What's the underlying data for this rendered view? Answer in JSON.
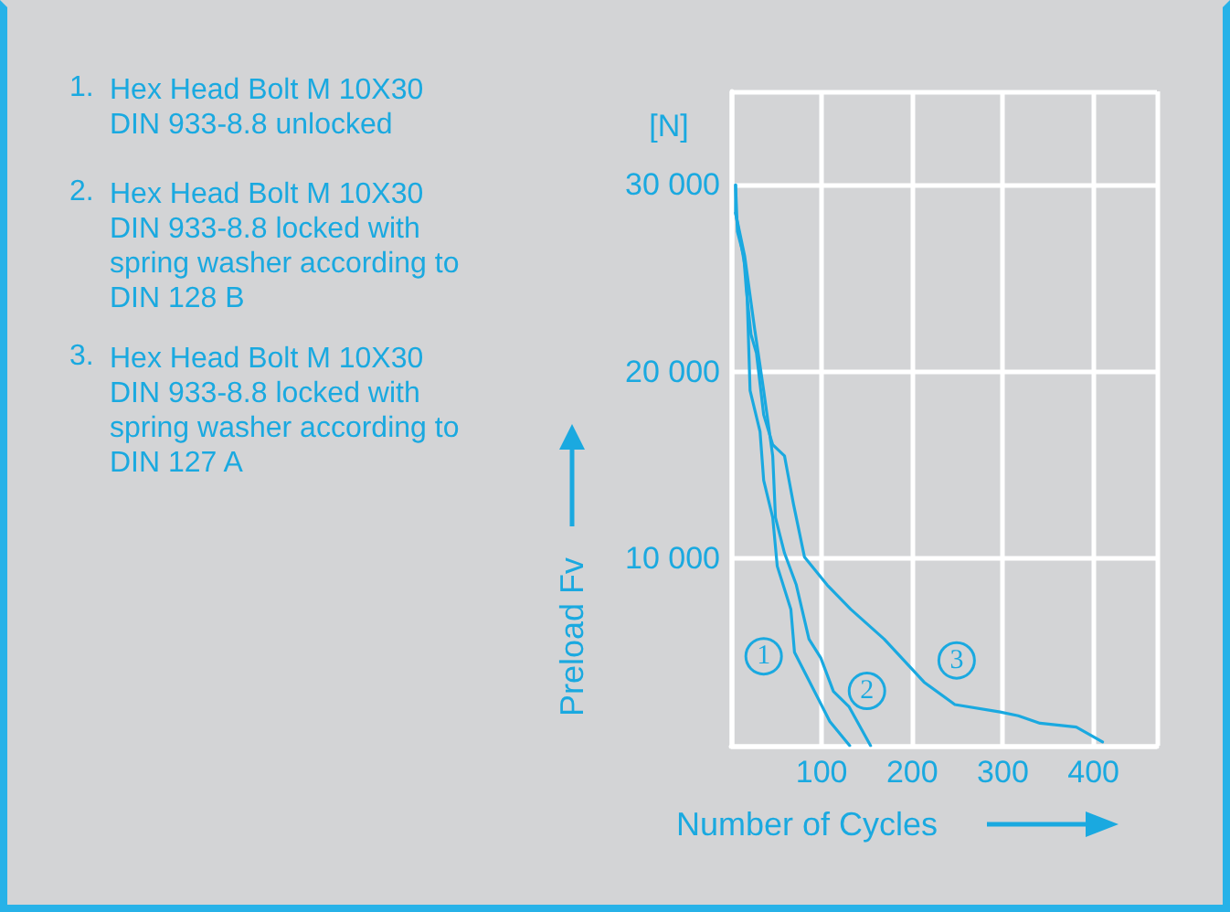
{
  "chart_data": {
    "type": "line",
    "xlabel": "Number of Cycles",
    "ylabel": "Preload Fv",
    "annotations": [
      "[N]",
      "1. Hex Head Bolt M 10X30 DIN 933-8.8 unlocked",
      "2. Hex Head Bolt M 10X30 DIN 933-8.8 locked with spring washer according to DIN 128 B",
      "3. Hex Head Bolt M 10X30 DIN 933-8.8 locked with spring washer according to DIN 127 A",
      {
        "text": "1",
        "x": 36,
        "y": 4780
      },
      {
        "text": "2",
        "x": 150,
        "y": 2930
      },
      {
        "text": "3",
        "x": 249,
        "y": 4560
      }
    ],
    "series": [
      {
        "color": "#1aa9e0",
        "x": [
          5,
          5,
          17,
          21,
          32,
          36,
          46,
          51,
          66,
          70,
          109,
          131
        ],
        "values": [
          30000,
          28500,
          25200,
          19000,
          16800,
          14200,
          12200,
          9600,
          7300,
          5000,
          1300,
          0
        ]
      },
      {
        "color": "#1aa9e0",
        "x": [
          5,
          15,
          26,
          36,
          46,
          49,
          59,
          72,
          86,
          99,
          113,
          130,
          154
        ],
        "values": [
          28500,
          26200,
          22300,
          19000,
          15500,
          12200,
          10300,
          8600,
          5700,
          4700,
          2900,
          2100,
          0
        ]
      },
      {
        "color": "#1aa9e0",
        "x": [
          5,
          7,
          14,
          17,
          22,
          28,
          36,
          46,
          59,
          69,
          81,
          106,
          132,
          169,
          213,
          247,
          297,
          317,
          341,
          381,
          410
        ],
        "values": [
          30000,
          27500,
          26200,
          24300,
          22000,
          21000,
          17700,
          16100,
          15500,
          12900,
          10100,
          8600,
          7300,
          5700,
          3400,
          2200,
          1800,
          1600,
          1200,
          1000,
          200
        ]
      }
    ],
    "xlim": [
      0,
      470
    ],
    "ylim": [
      0,
      35000
    ],
    "xticks": [
      {
        "value": 0,
        "label": null
      },
      100,
      200,
      300,
      400
    ],
    "yticks": [
      {
        "value": 0,
        "label": null
      },
      {
        "value": 10000,
        "label": "10 000"
      },
      {
        "value": 20000,
        "label": "20 000"
      },
      {
        "value": 30000,
        "label": "30 000"
      }
    ],
    "grid": true,
    "marker": "none",
    "line_style": "solid"
  }
}
